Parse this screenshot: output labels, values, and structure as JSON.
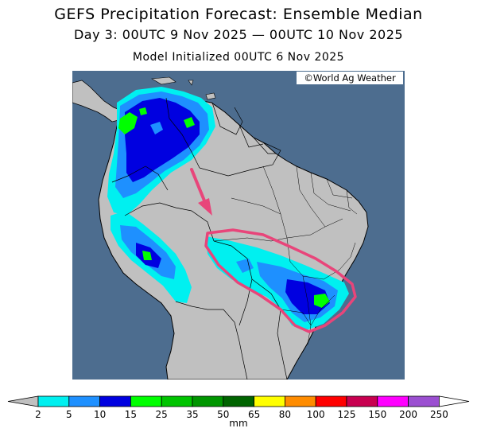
{
  "header": {
    "title": "GEFS Precipitation Forecast: Ensemble Median",
    "valid_period": "Day 3: 00UTC 9 Nov 2025 — 00UTC 10 Nov 2025",
    "init_line": "Model Initialized 00UTC 6 Nov 2025"
  },
  "map": {
    "credit": "©World Ag Weather",
    "ocean_color": "#4d6d8f",
    "land_color": "#c0c0c0",
    "highlight_color": "#e8457a",
    "annotations": [
      "arrow-pointing-to-region",
      "highlighted-region-outline"
    ]
  },
  "legend": {
    "unit": "mm",
    "labels": [
      "2",
      "5",
      "10",
      "15",
      "25",
      "35",
      "50",
      "65",
      "80",
      "100",
      "125",
      "150",
      "200",
      "250"
    ],
    "colors": [
      "#00f0f0",
      "#1e90ff",
      "#0000e0",
      "#00ff00",
      "#00c400",
      "#009600",
      "#006400",
      "#ffff00",
      "#ff8c00",
      "#ff0000",
      "#c80050",
      "#ff00ff",
      "#9b4fd1"
    ]
  }
}
